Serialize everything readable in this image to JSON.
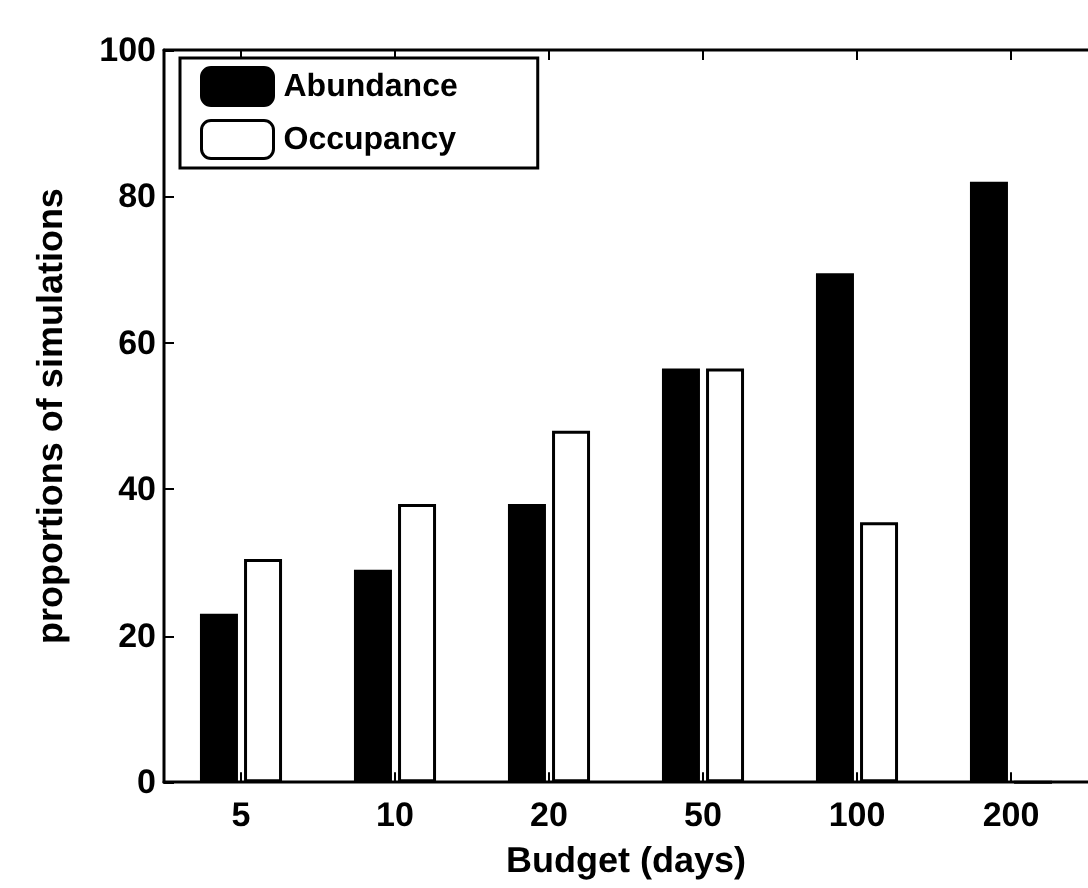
{
  "chart_data": {
    "type": "bar",
    "xlabel": "Budget (days)",
    "ylabel": "proportions of simulations",
    "categories": [
      "5",
      "10",
      "20",
      "50",
      "100",
      "200"
    ],
    "series": [
      {
        "name": "Abundance",
        "color": "#000000",
        "values": [
          23,
          29,
          38,
          56.5,
          69.5,
          82
        ]
      },
      {
        "name": "Occupancy",
        "color": "#ffffff",
        "values": [
          30.5,
          38,
          48,
          56.5,
          35.5,
          0
        ]
      }
    ],
    "ylim": [
      0,
      100
    ],
    "yticks": [
      0,
      20,
      40,
      60,
      80,
      100
    ],
    "grid": false,
    "legend": "top left"
  }
}
